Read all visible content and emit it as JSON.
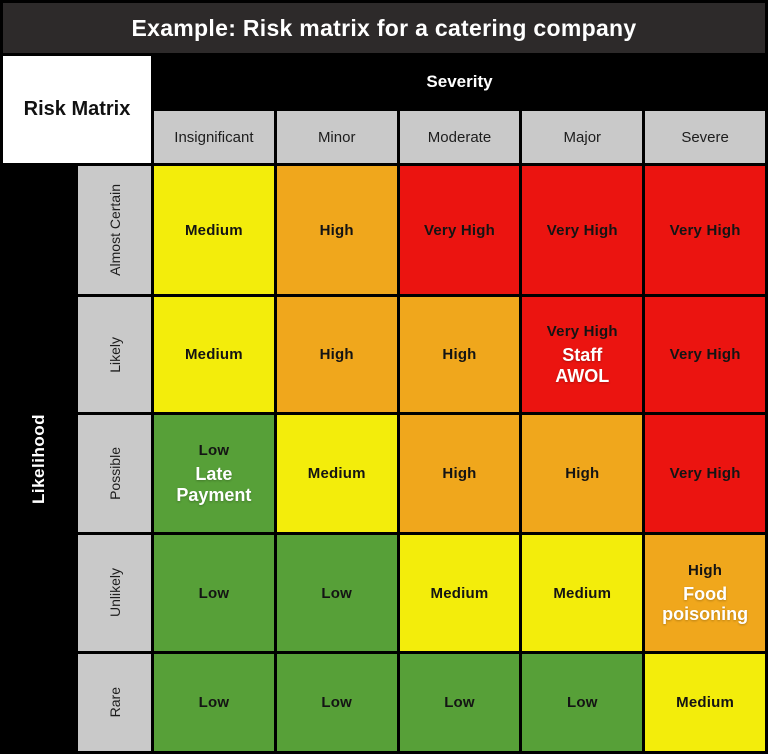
{
  "title": "Example: Risk matrix for a catering company",
  "corner_label": "Risk Matrix",
  "axes": {
    "x_title": "Severity",
    "y_title": "Likelihood"
  },
  "severity_levels": [
    "Insignificant",
    "Minor",
    "Moderate",
    "Major",
    "Severe"
  ],
  "likelihood_levels": [
    "Almost Certain",
    "Likely",
    "Possible",
    "Unlikely",
    "Rare"
  ],
  "risk_colors": {
    "low": "#57a038",
    "medium": "#f3ed0b",
    "high": "#f0a71c",
    "very_high": "#eb1410"
  },
  "ui_colors": {
    "title_bar": "#2d2a2a",
    "header_gray": "#c9c9c9",
    "frame_black": "#000000"
  },
  "cells": [
    [
      {
        "level": "Medium",
        "color": "medium"
      },
      {
        "level": "High",
        "color": "high"
      },
      {
        "level": "Very High",
        "color": "very_high"
      },
      {
        "level": "Very High",
        "color": "very_high"
      },
      {
        "level": "Very High",
        "color": "very_high"
      }
    ],
    [
      {
        "level": "Medium",
        "color": "medium"
      },
      {
        "level": "High",
        "color": "high"
      },
      {
        "level": "High",
        "color": "high"
      },
      {
        "level": "Very High",
        "color": "very_high",
        "event": "Staff\nAWOL"
      },
      {
        "level": "Very High",
        "color": "very_high"
      }
    ],
    [
      {
        "level": "Low",
        "color": "low",
        "event": "Late\nPayment"
      },
      {
        "level": "Medium",
        "color": "medium"
      },
      {
        "level": "High",
        "color": "high"
      },
      {
        "level": "High",
        "color": "high"
      },
      {
        "level": "Very High",
        "color": "very_high"
      }
    ],
    [
      {
        "level": "Low",
        "color": "low"
      },
      {
        "level": "Low",
        "color": "low"
      },
      {
        "level": "Medium",
        "color": "medium"
      },
      {
        "level": "Medium",
        "color": "medium"
      },
      {
        "level": "High",
        "color": "high",
        "event": "Food\npoisoning"
      }
    ],
    [
      {
        "level": "Low",
        "color": "low"
      },
      {
        "level": "Low",
        "color": "low"
      },
      {
        "level": "Low",
        "color": "low"
      },
      {
        "level": "Low",
        "color": "low"
      },
      {
        "level": "Medium",
        "color": "medium"
      }
    ]
  ],
  "chart_data": {
    "type": "heatmap",
    "title": "Example: Risk matrix for a catering company",
    "xlabel": "Severity",
    "ylabel": "Likelihood",
    "x": [
      "Insignificant",
      "Minor",
      "Moderate",
      "Major",
      "Severe"
    ],
    "y": [
      "Almost Certain",
      "Likely",
      "Possible",
      "Unlikely",
      "Rare"
    ],
    "values": [
      [
        "Medium",
        "High",
        "Very High",
        "Very High",
        "Very High"
      ],
      [
        "Medium",
        "High",
        "High",
        "Very High",
        "Very High"
      ],
      [
        "Low",
        "Medium",
        "High",
        "High",
        "Very High"
      ],
      [
        "Low",
        "Low",
        "Medium",
        "Medium",
        "High"
      ],
      [
        "Low",
        "Low",
        "Low",
        "Low",
        "Medium"
      ]
    ],
    "annotations": [
      {
        "y": "Likely",
        "x": "Major",
        "label": "Staff AWOL"
      },
      {
        "y": "Possible",
        "x": "Insignificant",
        "label": "Late Payment"
      },
      {
        "y": "Unlikely",
        "x": "Severe",
        "label": "Food poisoning"
      }
    ],
    "color_scale": {
      "Low": "#57a038",
      "Medium": "#f3ed0b",
      "High": "#f0a71c",
      "Very High": "#eb1410"
    },
    "legend": false,
    "grid": true
  }
}
